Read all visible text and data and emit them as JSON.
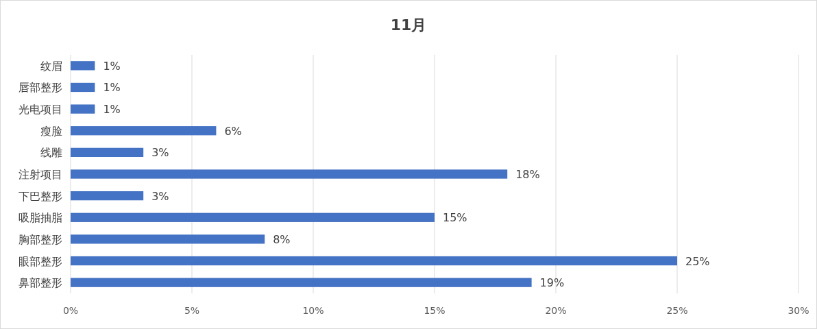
{
  "chart_data": {
    "type": "bar",
    "orientation": "horizontal",
    "title": "11月",
    "categories": [
      "纹眉",
      "唇部整形",
      "光电项目",
      "瘦脸",
      "线雕",
      "注射项目",
      "下巴整形",
      "吸脂抽脂",
      "胸部整形",
      "眼部整形",
      "鼻部整形"
    ],
    "values": [
      1,
      1,
      1,
      6,
      3,
      18,
      3,
      15,
      8,
      25,
      19
    ],
    "value_labels": [
      "1%",
      "1%",
      "1%",
      "6%",
      "3%",
      "18%",
      "3%",
      "15%",
      "8%",
      "25%",
      "19%"
    ],
    "color": "#4472c4",
    "xlim": [
      0,
      30
    ],
    "xticks": [
      {
        "value": 0,
        "label": "0%"
      },
      {
        "value": 5,
        "label": "5%"
      },
      {
        "value": 10,
        "label": "10%"
      },
      {
        "value": 15,
        "label": "15%"
      },
      {
        "value": 20,
        "label": "20%"
      },
      {
        "value": 25,
        "label": "25%"
      },
      {
        "value": 30,
        "label": "30%"
      }
    ],
    "grid": "x"
  }
}
